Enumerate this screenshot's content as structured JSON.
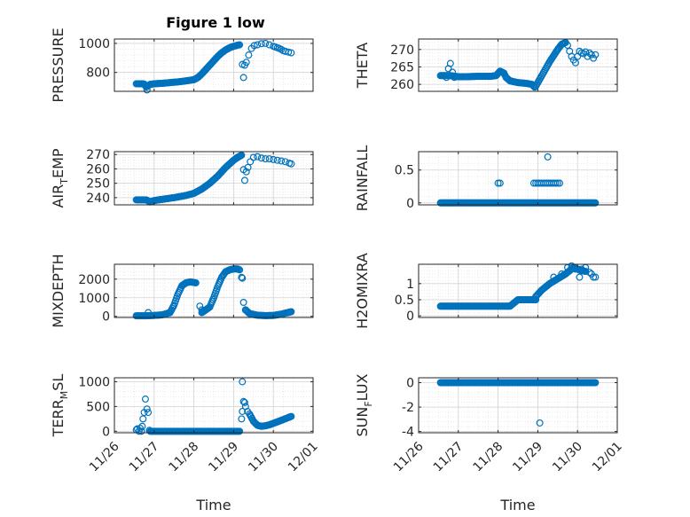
{
  "figure": {
    "title": "Figure 1 low"
  },
  "chart_data": [
    {
      "type": "scatter",
      "id": "pressure",
      "ylabel": {
        "main": "PRESSURE"
      },
      "ylim": [
        670,
        1030
      ],
      "yticks": [
        800,
        1000
      ],
      "xlim": [
        0,
        5
      ],
      "xticks": [
        "11/26",
        "11/27",
        "11/28",
        "11/29",
        "11/30",
        "12/01"
      ],
      "show_xticks": false,
      "grid": true,
      "color": "#0072BD",
      "segments": [
        {
          "x": [
            0.55,
            0.7,
            0.75,
            0.8,
            0.9,
            1.0,
            1.2,
            1.4,
            1.6,
            1.8,
            2.0,
            2.1,
            2.2,
            2.3,
            2.4,
            2.5,
            2.6,
            2.7,
            2.8,
            2.9,
            3.0,
            3.1,
            3.15
          ],
          "y": [
            722,
            722,
            720,
            700,
            718,
            722,
            725,
            730,
            735,
            742,
            750,
            765,
            790,
            820,
            850,
            880,
            910,
            935,
            955,
            970,
            980,
            987,
            990
          ]
        }
      ],
      "points": {
        "x": [
          0.82,
          3.22,
          3.25,
          3.28,
          3.32,
          3.38,
          3.45,
          3.52,
          3.6,
          3.7,
          3.8,
          3.9,
          4.0,
          4.05,
          4.1,
          4.15,
          4.2,
          4.25,
          4.3,
          4.38,
          4.45
        ],
        "y": [
          680,
          855,
          765,
          850,
          870,
          920,
          965,
          985,
          990,
          998,
          1000,
          990,
          980,
          975,
          970,
          965,
          958,
          950,
          945,
          940,
          935
        ]
      }
    },
    {
      "type": "scatter",
      "id": "theta",
      "ylabel": {
        "main": "THETA"
      },
      "ylim": [
        258,
        273
      ],
      "yticks": [
        260,
        265,
        270
      ],
      "xlim": [
        0,
        5
      ],
      "xticks": [
        "11/26",
        "11/27",
        "11/28",
        "11/29",
        "11/30",
        "12/01"
      ],
      "show_xticks": false,
      "grid": true,
      "color": "#0072BD",
      "segments": [
        {
          "x": [
            0.55,
            0.8,
            1.0,
            1.2,
            1.5,
            1.8,
            1.95,
            2.05,
            2.15,
            2.2,
            2.3,
            2.5,
            2.7,
            2.85,
            2.92
          ],
          "y": [
            262.5,
            262.5,
            262.2,
            262.2,
            262.3,
            262.3,
            262.5,
            263.8,
            263.2,
            262.0,
            261.0,
            260.5,
            260.3,
            260.0,
            259.2
          ]
        },
        {
          "x": [
            2.95,
            3.1,
            3.3,
            3.5,
            3.6,
            3.7
          ],
          "y": [
            259.5,
            262.5,
            266.5,
            270.0,
            271.5,
            272.0
          ]
        }
      ],
      "points": {
        "x": [
          0.7,
          0.75,
          0.8,
          0.85,
          0.9,
          3.75,
          3.8,
          3.85,
          3.9,
          3.95,
          4.0,
          4.05,
          4.1,
          4.15,
          4.2,
          4.25,
          4.3,
          4.35,
          4.4,
          4.45
        ],
        "y": [
          262.0,
          264.5,
          266.0,
          263.5,
          262.0,
          271.2,
          269.5,
          268.0,
          267.0,
          266.2,
          268.0,
          269.5,
          269.0,
          268.8,
          269.3,
          268.0,
          269.0,
          268.5,
          267.5,
          268.5
        ]
      }
    },
    {
      "type": "scatter",
      "id": "air_temp",
      "ylabel": {
        "main": "AIR",
        "sub": "T",
        "rest": "EMP"
      },
      "ylim": [
        235,
        272
      ],
      "yticks": [
        240,
        250,
        260,
        270
      ],
      "xlim": [
        0,
        5
      ],
      "xticks": [
        "11/26",
        "11/27",
        "11/28",
        "11/29",
        "11/30",
        "12/01"
      ],
      "show_xticks": false,
      "grid": true,
      "color": "#0072BD",
      "segments": [
        {
          "x": [
            0.55,
            0.8,
            0.9,
            1.0,
            1.2,
            1.5,
            1.8,
            2.0,
            2.2,
            2.4,
            2.6,
            2.8,
            3.0,
            3.1,
            3.2
          ],
          "y": [
            238.5,
            238.5,
            237.0,
            238.0,
            238.8,
            240.0,
            241.5,
            243.0,
            246.0,
            250.0,
            255.0,
            261.0,
            266.0,
            268.0,
            269.5
          ]
        }
      ],
      "points": {
        "x": [
          3.25,
          3.28,
          3.32,
          3.36,
          3.42,
          3.5,
          3.6,
          3.7,
          3.8,
          3.9,
          4.0,
          4.1,
          4.2,
          4.3,
          4.4,
          4.45
        ],
        "y": [
          259.5,
          252.0,
          258.0,
          261.0,
          265.0,
          268.0,
          268.5,
          267.5,
          267.0,
          267.0,
          266.5,
          266.0,
          265.5,
          265.0,
          264.0,
          263.5
        ]
      }
    },
    {
      "type": "scatter",
      "id": "rainfall",
      "ylabel": {
        "main": "RAINFALL"
      },
      "ylim": [
        -0.03,
        0.78
      ],
      "yticks": [
        0,
        0.5
      ],
      "xlim": [
        0,
        5
      ],
      "xticks": [
        "11/26",
        "11/27",
        "11/28",
        "11/29",
        "11/30",
        "12/01"
      ],
      "show_xticks": false,
      "grid": true,
      "color": "#0072BD",
      "segments": [
        {
          "x": [
            0.55,
            4.45
          ],
          "y": [
            0,
            0
          ]
        }
      ],
      "points": {
        "x": [
          2.0,
          2.05,
          2.9,
          2.95,
          3.0,
          3.05,
          3.1,
          3.15,
          3.2,
          3.25,
          3.3,
          3.35,
          3.4,
          3.45,
          3.5,
          3.55,
          3.25
        ],
        "y": [
          0.3,
          0.3,
          0.3,
          0.3,
          0.3,
          0.3,
          0.3,
          0.3,
          0.3,
          0.3,
          0.3,
          0.3,
          0.3,
          0.3,
          0.3,
          0.3,
          0.7
        ]
      }
    },
    {
      "type": "scatter",
      "id": "mixdepth",
      "ylabel": {
        "main": "MIXDEPTH"
      },
      "ylim": [
        -60,
        2800
      ],
      "yticks": [
        0,
        1000,
        2000
      ],
      "xlim": [
        0,
        5
      ],
      "xticks": [
        "11/26",
        "11/27",
        "11/28",
        "11/29",
        "11/30",
        "12/01"
      ],
      "show_xticks": false,
      "grid": true,
      "color": "#0072BD",
      "segments": [
        {
          "x": [
            0.55,
            0.8,
            1.0,
            1.2,
            1.4,
            1.5,
            1.6,
            1.7,
            1.8,
            1.9,
            2.0,
            2.05
          ],
          "y": [
            30,
            30,
            50,
            80,
            200,
            600,
            1200,
            1650,
            1800,
            1850,
            1820,
            1800
          ]
        },
        {
          "x": [
            2.2,
            2.3,
            2.4,
            2.5,
            2.6,
            2.7,
            2.8,
            2.9,
            3.0,
            3.1,
            3.15
          ],
          "y": [
            200,
            350,
            500,
            1000,
            1600,
            2100,
            2400,
            2500,
            2550,
            2550,
            2500
          ]
        },
        {
          "x": [
            3.3,
            3.4,
            3.6,
            3.8,
            4.0,
            4.2,
            4.45
          ],
          "y": [
            350,
            150,
            60,
            40,
            50,
            120,
            250
          ]
        }
      ],
      "points": {
        "x": [
          0.85,
          2.15,
          2.2,
          3.2,
          3.22,
          3.25,
          3.3
        ],
        "y": [
          200,
          550,
          350,
          2100,
          2050,
          750,
          350
        ]
      }
    },
    {
      "type": "scatter",
      "id": "h2omixra",
      "ylabel": {
        "main": "H2OMIXRA"
      },
      "ylim": [
        -0.05,
        1.6
      ],
      "yticks": [
        0,
        0.5,
        1
      ],
      "xlim": [
        0,
        5
      ],
      "xticks": [
        "11/26",
        "11/27",
        "11/28",
        "11/29",
        "11/30",
        "12/01"
      ],
      "show_xticks": false,
      "grid": true,
      "color": "#0072BD",
      "segments": [
        {
          "x": [
            0.55,
            2.0,
            2.3,
            2.4,
            2.5,
            2.7,
            2.95
          ],
          "y": [
            0.3,
            0.3,
            0.3,
            0.4,
            0.5,
            0.5,
            0.5
          ]
        },
        {
          "x": [
            2.95,
            3.1,
            3.3,
            3.5,
            3.7,
            3.8,
            3.9,
            4.0,
            4.1,
            4.2
          ],
          "y": [
            0.6,
            0.8,
            1.0,
            1.15,
            1.3,
            1.4,
            1.5,
            1.45,
            1.4,
            1.38
          ]
        }
      ],
      "points": {
        "x": [
          3.4,
          3.6,
          3.75,
          3.85,
          3.95,
          4.05,
          4.1,
          4.2,
          4.3,
          4.35,
          4.4,
          4.45
        ],
        "y": [
          1.2,
          1.3,
          1.5,
          1.55,
          1.45,
          1.2,
          1.45,
          1.5,
          1.35,
          1.3,
          1.2,
          1.2
        ]
      }
    },
    {
      "type": "scatter",
      "id": "terr_msl",
      "ylabel": {
        "main": "TERR",
        "sub": "M",
        "rest": "SL"
      },
      "ylim": [
        -30,
        1080
      ],
      "yticks": [
        0,
        500,
        1000
      ],
      "xlim": [
        0,
        5
      ],
      "xticks": [
        "11/26",
        "11/27",
        "11/28",
        "11/29",
        "11/30",
        "12/01"
      ],
      "show_xticks": true,
      "xlabel": "Time",
      "grid": true,
      "color": "#0072BD",
      "segments": [
        {
          "x": [
            0.9,
            3.15
          ],
          "y": [
            0,
            0
          ]
        },
        {
          "x": [
            3.4,
            3.5,
            3.6,
            3.7,
            3.8,
            3.9,
            4.0,
            4.2,
            4.45
          ],
          "y": [
            350,
            200,
            120,
            100,
            110,
            130,
            160,
            220,
            300
          ]
        }
      ],
      "points": {
        "x": [
          0.55,
          0.58,
          0.62,
          0.68,
          0.7,
          0.72,
          0.75,
          0.78,
          0.82,
          0.85,
          0.88,
          0.65,
          3.2,
          3.22,
          3.25,
          3.28,
          3.3,
          3.35,
          3.22
        ],
        "y": [
          30,
          50,
          0,
          0,
          100,
          250,
          380,
          650,
          450,
          380,
          20,
          60,
          250,
          400,
          600,
          580,
          500,
          400,
          1000
        ]
      }
    },
    {
      "type": "scatter",
      "id": "sun_flux",
      "ylabel": {
        "main": "SUN",
        "sub": "F",
        "rest": "LUX"
      },
      "ylim": [
        -4.1,
        0.4
      ],
      "yticks": [
        -4,
        -2,
        0
      ],
      "xlim": [
        0,
        5
      ],
      "xticks": [
        "11/26",
        "11/27",
        "11/28",
        "11/29",
        "11/30",
        "12/01"
      ],
      "show_xticks": true,
      "xlabel": "Time",
      "grid": true,
      "color": "#0072BD",
      "segments": [
        {
          "x": [
            0.55,
            4.45
          ],
          "y": [
            0,
            0
          ]
        }
      ],
      "points": {
        "x": [
          3.05
        ],
        "y": [
          -3.3
        ]
      }
    }
  ]
}
